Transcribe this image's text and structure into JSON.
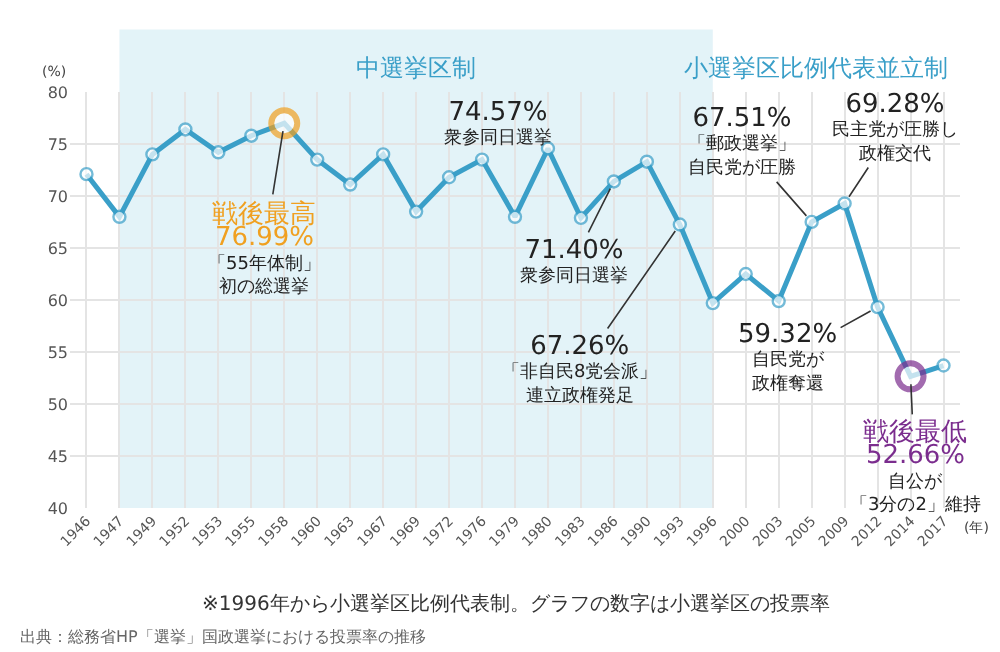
{
  "chart_data": {
    "type": "line",
    "categories": [
      "1946",
      "1947",
      "1949",
      "1952",
      "1953",
      "1955",
      "1958",
      "1960",
      "1963",
      "1967",
      "1969",
      "1972",
      "1976",
      "1979",
      "1980",
      "1983",
      "1986",
      "1990",
      "1993",
      "1996",
      "2000",
      "2003",
      "2005",
      "2009",
      "2012",
      "2014",
      "2017"
    ],
    "series": [
      {
        "color": "#3a9fc8",
        "values": [
          72.1,
          68.0,
          74.0,
          76.4,
          74.2,
          75.8,
          76.99,
          73.5,
          71.1,
          74.0,
          68.5,
          71.8,
          73.5,
          68.0,
          74.57,
          67.9,
          71.4,
          73.3,
          67.26,
          59.7,
          62.5,
          59.9,
          67.51,
          69.28,
          59.32,
          52.66,
          53.7
        ],
        "colors": [
          "#3a9fc8",
          "#3a9fc8",
          "#3a9fc8",
          "#3a9fc8",
          "#3a9fc8",
          "#3a9fc8",
          "#f0a020",
          "#3a9fc8",
          "#3a9fc8",
          "#3a9fc8",
          "#3a9fc8",
          "#3a9fc8",
          "#3a9fc8",
          "#3a9fc8",
          "#3a9fc8",
          "#3a9fc8",
          "#3a9fc8",
          "#3a9fc8",
          "#3a9fc8",
          "#3a9fc8",
          "#3a9fc8",
          "#3a9fc8",
          "#3a9fc8",
          "#3a9fc8",
          "#3a9fc8",
          "#7b2d8e",
          "#3a9fc8"
        ]
      }
    ],
    "ylim": [
      40,
      80
    ],
    "yticks": [
      40,
      45,
      50,
      55,
      60,
      65,
      70,
      75,
      80
    ],
    "ylabel": "(%)",
    "xlabel": "(年)",
    "grid": true,
    "legend": false,
    "marker": "circle",
    "line_style": "solid",
    "bands": [
      {
        "axis": "x",
        "from": "1947",
        "to": "1996",
        "label": "中選挙区制",
        "color": "#e3f3f8"
      }
    ],
    "annotations": [
      {
        "text": "戦後最高\n76.99%\n「55年体制」初の総選挙",
        "x": "1958",
        "y": 76.99
      },
      {
        "text": "74.57%\n衆参同日選挙",
        "x": "1980",
        "y": 74.57
      },
      {
        "text": "71.40%\n衆参同日選挙",
        "x": "1986",
        "y": 71.4
      },
      {
        "text": "67.26%\n「非自民8党会派」連立政権発足",
        "x": "1993",
        "y": 67.26
      },
      {
        "text": "67.51%\n「郵政選挙」自民党が圧勝",
        "x": "2005",
        "y": 67.51
      },
      {
        "text": "69.28%\n民主党が圧勝し政権交代",
        "x": "2009",
        "y": 69.28
      },
      {
        "text": "59.32%\n自民党が政権奪還",
        "x": "2012",
        "y": 59.32
      },
      {
        "text": "戦後最低\n52.66%\n自公が「3分の2」維持",
        "x": "2014",
        "y": 52.66
      },
      "小選挙区比例代表並立制",
      "※1996年から小選挙区比例代表制。グラフの数字は小選挙区の投票率",
      "出典：総務省HP「選挙」国政選挙における投票率の推移"
    ]
  }
}
